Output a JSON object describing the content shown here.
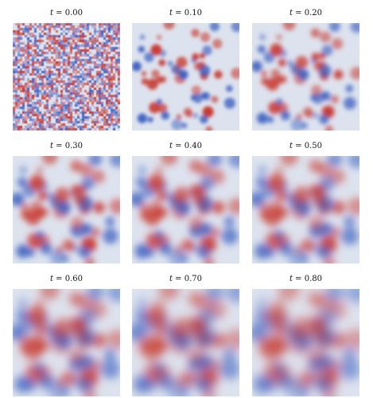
{
  "panel_label_var": "t",
  "panels": [
    {
      "t": "0.00",
      "smooth": 0.6
    },
    {
      "t": "0.10",
      "smooth": 2.2
    },
    {
      "t": "0.20",
      "smooth": 2.8
    },
    {
      "t": "0.30",
      "smooth": 4.0
    },
    {
      "t": "0.40",
      "smooth": 4.5
    },
    {
      "t": "0.50",
      "smooth": 4.9
    },
    {
      "t": "0.60",
      "smooth": 5.6
    },
    {
      "t": "0.70",
      "smooth": 6.0
    },
    {
      "t": "0.80",
      "smooth": 6.3
    }
  ],
  "colors": {
    "low": "#3b5fc0",
    "mid": "#dde3ee",
    "high": "#c8372d",
    "background": "#ffffff",
    "text": "#111111"
  }
}
